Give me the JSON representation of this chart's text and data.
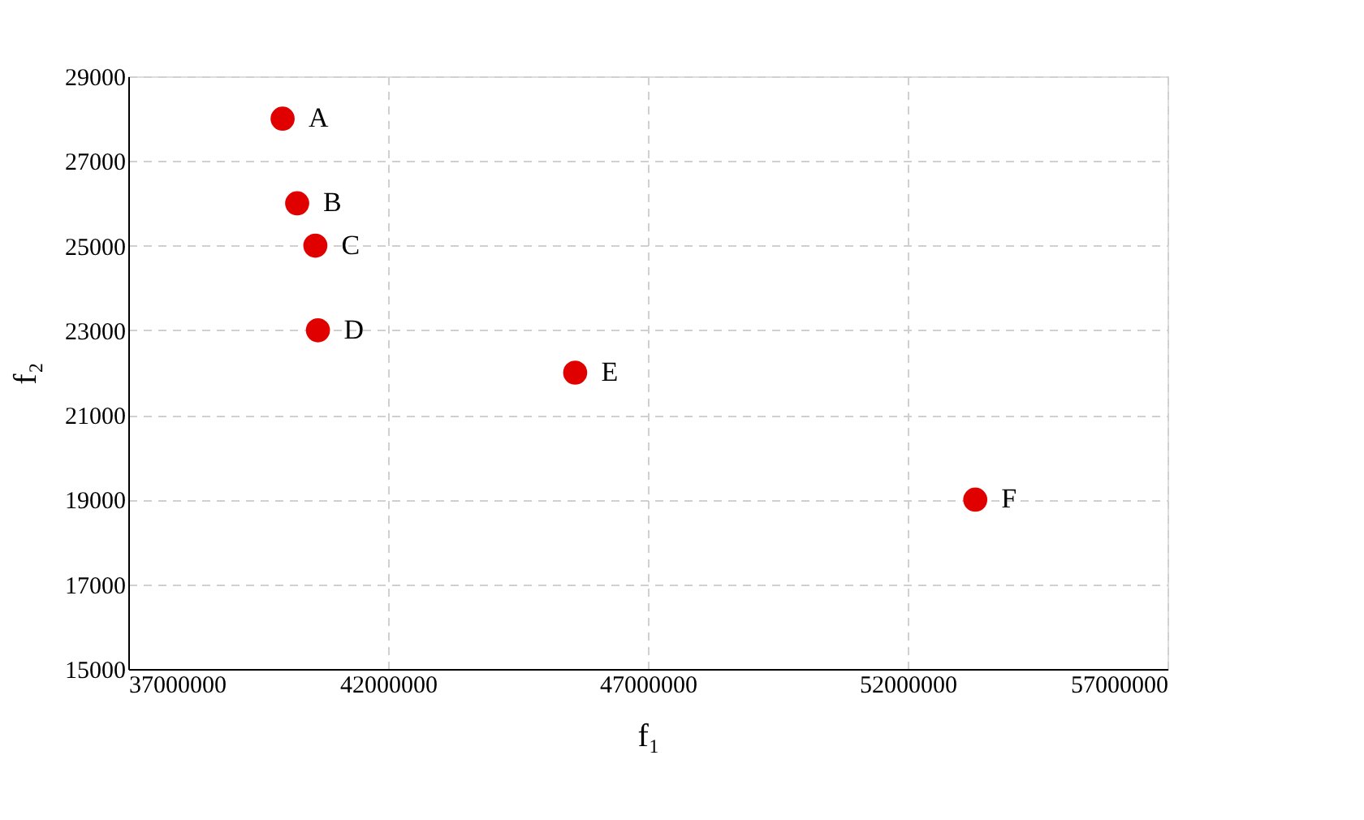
{
  "chart_data": {
    "type": "scatter",
    "xlabel": "f₁",
    "ylabel": "f₂",
    "x": [
      39970000,
      40250000,
      40600000,
      40650000,
      45600000,
      53300000
    ],
    "series": [
      {
        "color": "#e00000",
        "values": [
          28000,
          26000,
          25000,
          23000,
          22000,
          19000
        ]
      }
    ],
    "annotations": [
      {
        "text": "A",
        "x": 39970000,
        "y": 28000
      },
      {
        "text": "B",
        "x": 40250000,
        "y": 26000
      },
      {
        "text": "C",
        "x": 40600000,
        "y": 25000
      },
      {
        "text": "D",
        "x": 40650000,
        "y": 23000
      },
      {
        "text": "E",
        "x": 45600000,
        "y": 22000
      },
      {
        "text": "F",
        "x": 53300000,
        "y": 19000
      }
    ],
    "xlim": [
      37000000,
      57000000
    ],
    "xticks": [
      37000000,
      42000000,
      47000000,
      52000000,
      57000000
    ],
    "ylim": [
      15000,
      29000
    ],
    "yticks": [
      15000,
      17000,
      19000,
      21000,
      23000,
      25000,
      27000,
      29000
    ],
    "grid": true,
    "marker": "circle"
  }
}
